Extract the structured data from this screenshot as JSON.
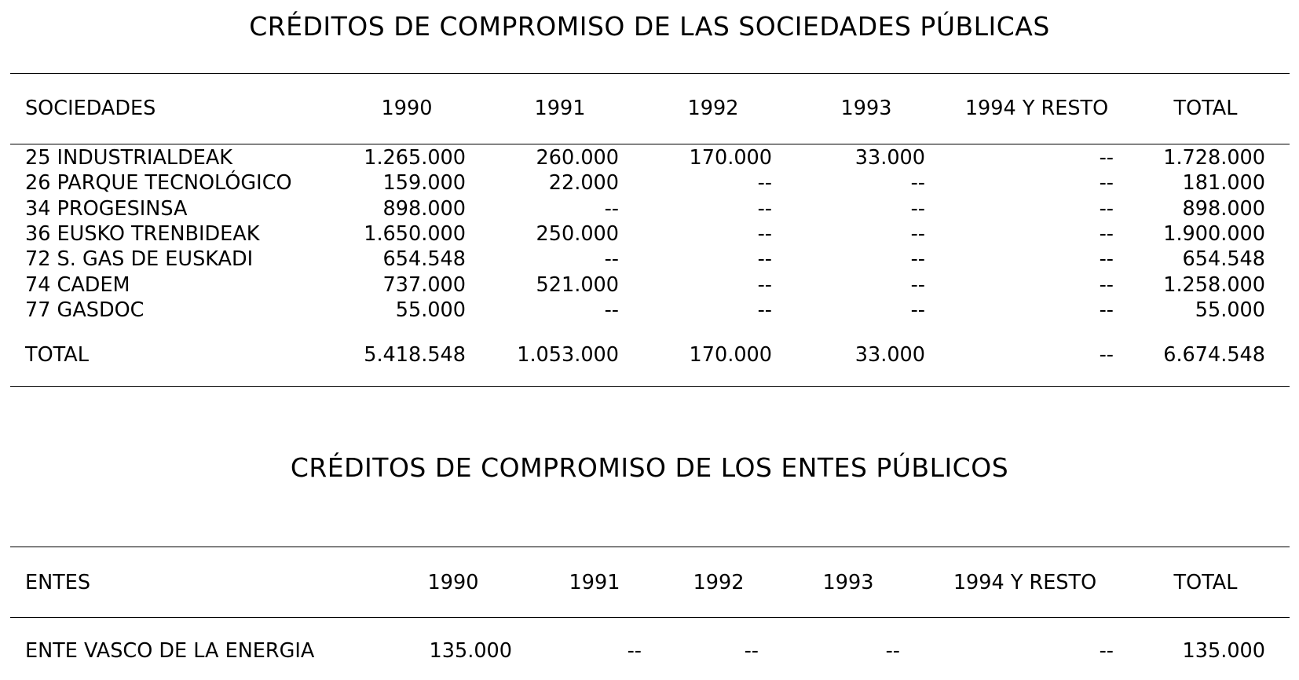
{
  "sociedades": {
    "title": "CRÉDITOS DE COMPROMISO DE LAS SOCIEDADES PÚBLICAS",
    "headers": [
      "SOCIEDADES",
      "1990",
      "1991",
      "1992",
      "1993",
      "1994 Y RESTO",
      "TOTAL"
    ],
    "rows": [
      [
        "25 INDUSTRIALDEAK",
        "1.265.000",
        "260.000",
        "170.000",
        "33.000",
        "--",
        "1.728.000"
      ],
      [
        "26 PARQUE TECNOLÓGICO",
        "159.000",
        "22.000",
        "--",
        "--",
        "--",
        "181.000"
      ],
      [
        "34 PROGESINSA",
        "898.000",
        "--",
        "--",
        "--",
        "--",
        "898.000"
      ],
      [
        "36 EUSKO TRENBIDEAK",
        "1.650.000",
        "250.000",
        "--",
        "--",
        "--",
        "1.900.000"
      ],
      [
        "72 S. GAS DE EUSKADI",
        "654.548",
        "--",
        "--",
        "--",
        "--",
        "654.548"
      ],
      [
        "74 CADEM",
        "737.000",
        "521.000",
        "--",
        "--",
        "--",
        "1.258.000"
      ],
      [
        "77 GASDOC",
        "55.000",
        "--",
        "--",
        "--",
        "--",
        "55.000"
      ]
    ],
    "total": [
      "TOTAL",
      "5.418.548",
      "1.053.000",
      "170.000",
      "33.000",
      "--",
      "6.674.548"
    ]
  },
  "entes": {
    "title": "CRÉDITOS DE COMPROMISO DE LOS ENTES PÚBLICOS",
    "headers": [
      "ENTES",
      "1990",
      "1991",
      "1992",
      "1993",
      "1994 Y RESTO",
      "TOTAL"
    ],
    "rows": [
      [
        "ENTE VASCO DE LA ENERGIA",
        "135.000",
        "--",
        "--",
        "--",
        "--",
        "135.000"
      ]
    ]
  }
}
